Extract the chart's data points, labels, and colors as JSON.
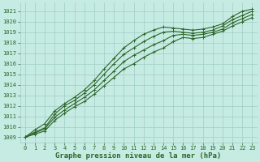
{
  "xlabel": "Graphe pression niveau de la mer (hPa)",
  "ylim": [
    1008.5,
    1021.8
  ],
  "xlim": [
    -0.5,
    23.5
  ],
  "yticks": [
    1009,
    1010,
    1011,
    1012,
    1013,
    1014,
    1015,
    1016,
    1017,
    1018,
    1019,
    1020,
    1021
  ],
  "xticks": [
    0,
    1,
    2,
    3,
    4,
    5,
    6,
    7,
    8,
    9,
    10,
    11,
    12,
    13,
    14,
    15,
    16,
    17,
    18,
    19,
    20,
    21,
    22,
    23
  ],
  "bg_color": "#c6ebe3",
  "grid_color": "#9ecec6",
  "line_color": "#2d6629",
  "series": [
    [
      1009.0,
      1009.7,
      1010.3,
      1011.5,
      1012.2,
      1012.8,
      1013.5,
      1014.4,
      1015.5,
      1016.5,
      1017.5,
      1018.2,
      1018.8,
      1019.2,
      1019.5,
      1019.4,
      1019.3,
      1019.2,
      1019.3,
      1019.5,
      1019.8,
      1020.5,
      1021.0,
      1021.2
    ],
    [
      1009.0,
      1009.5,
      1009.9,
      1011.2,
      1012.0,
      1012.5,
      1013.2,
      1014.0,
      1015.0,
      1016.0,
      1016.9,
      1017.5,
      1018.1,
      1018.6,
      1019.0,
      1019.1,
      1019.0,
      1018.9,
      1019.0,
      1019.2,
      1019.6,
      1020.2,
      1020.6,
      1021.0
    ],
    [
      1009.0,
      1009.4,
      1009.8,
      1010.9,
      1011.6,
      1012.2,
      1012.8,
      1013.5,
      1014.4,
      1015.3,
      1016.2,
      1016.8,
      1017.3,
      1017.8,
      1018.2,
      1018.7,
      1018.8,
      1018.7,
      1018.8,
      1019.0,
      1019.3,
      1019.9,
      1020.3,
      1020.7
    ],
    [
      1009.0,
      1009.3,
      1009.6,
      1010.6,
      1011.3,
      1011.9,
      1012.4,
      1013.1,
      1013.9,
      1014.7,
      1015.5,
      1016.0,
      1016.6,
      1017.1,
      1017.5,
      1018.1,
      1018.5,
      1018.4,
      1018.5,
      1018.8,
      1019.1,
      1019.6,
      1020.0,
      1020.4
    ]
  ],
  "marker": "+",
  "marker_size": 3,
  "linewidth": 0.8,
  "title_fontsize": 6.5,
  "tick_fontsize": 5.0
}
